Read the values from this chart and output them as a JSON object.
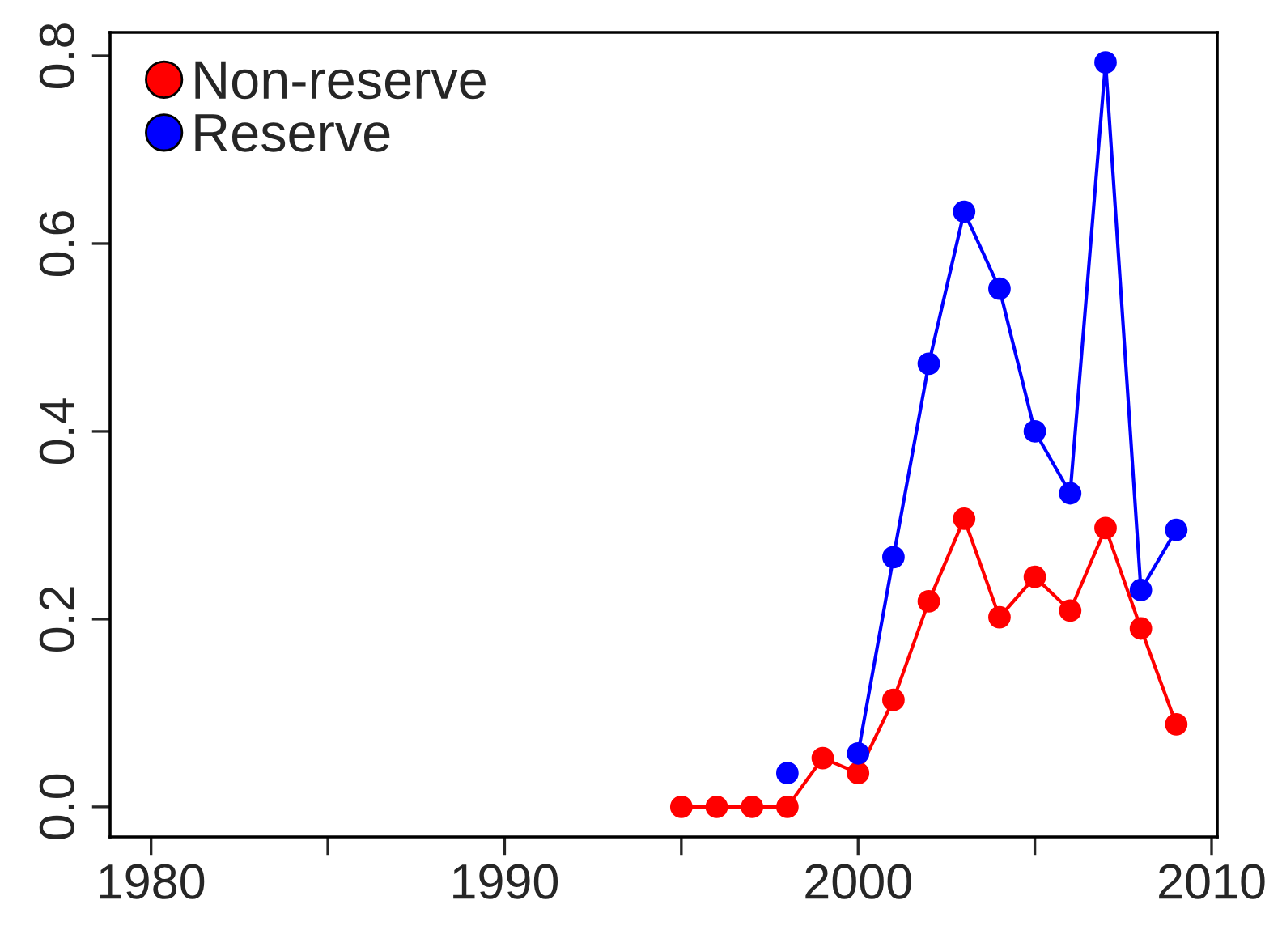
{
  "chart_data": {
    "type": "line",
    "x": [
      1995,
      1996,
      1997,
      1998,
      1999,
      2000,
      2001,
      2002,
      2003,
      2004,
      2005,
      2006,
      2007,
      2008,
      2009
    ],
    "series": [
      {
        "name": "Non-reserve",
        "color": "#ff0000",
        "values": [
          0,
          0,
          0,
          0,
          0.052,
          0.036,
          0.114,
          0.219,
          0.307,
          0.202,
          0.245,
          0.209,
          0.297,
          0.19,
          0.088
        ]
      },
      {
        "name": "Reserve",
        "color": "#0000ff",
        "values": [
          null,
          null,
          null,
          0.036,
          null,
          0.057,
          0.266,
          0.472,
          0.634,
          0.552,
          0.4,
          0.334,
          0.793,
          0.231,
          0.295
        ]
      }
    ],
    "xlim": [
      1978.84,
      2010.16
    ],
    "xticks": [
      1980,
      1990,
      2000,
      2010
    ],
    "ylim": [
      -0.032,
      0.825
    ],
    "yticks": [
      {
        "value": 0,
        "label": "0.0"
      },
      {
        "value": 0.2,
        "label": "0.2"
      },
      {
        "value": 0.4,
        "label": "0.4"
      },
      {
        "value": 0.6,
        "label": "0.6"
      },
      {
        "value": 0.8,
        "label": "0.8"
      }
    ],
    "marker": "circle",
    "line_style": "solid",
    "legend": "top left",
    "grid": false
  }
}
